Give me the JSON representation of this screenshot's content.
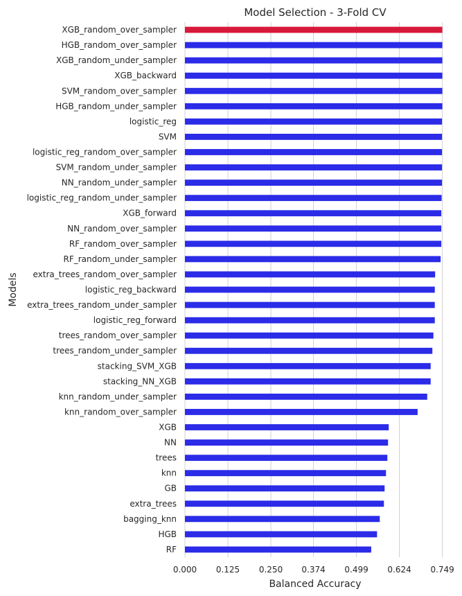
{
  "chart_data": {
    "type": "bar",
    "orientation": "horizontal",
    "title": "Model Selection - 3-Fold CV",
    "xlabel": "Balanced Accuracy",
    "ylabel": "Models",
    "xlim": [
      0,
      0.78
    ],
    "xticks": [
      "0.000",
      "0.125",
      "0.250",
      "0.374",
      "0.499",
      "0.624",
      "0.749"
    ],
    "grid": "vertical",
    "colors": {
      "default": "#2b2be8",
      "highlight": "#d7193a"
    },
    "highlight_index": 0,
    "categories": [
      "XGB_random_over_sampler",
      "HGB_random_over_sampler",
      "XGB_random_under_sampler",
      "XGB_backward",
      "SVM_random_over_sampler",
      "HGB_random_under_sampler",
      "logistic_reg",
      "SVM",
      "logistic_reg_random_over_sampler",
      "SVM_random_under_sampler",
      "NN_random_under_sampler",
      "logistic_reg_random_under_sampler",
      "XGB_forward",
      "NN_random_over_sampler",
      "RF_random_over_sampler",
      "RF_random_under_sampler",
      "extra_trees_random_over_sampler",
      "logistic_reg_backward",
      "extra_trees_random_under_sampler",
      "logistic_reg_forward",
      "trees_random_over_sampler",
      "trees_random_under_sampler",
      "stacking_SVM_XGB",
      "stacking_NN_XGB",
      "knn_random_under_sampler",
      "knn_random_over_sampler",
      "XGB",
      "NN",
      "trees",
      "knn",
      "GB",
      "extra_trees",
      "bagging_knn",
      "HGB",
      "RF"
    ],
    "values": [
      0.749,
      0.749,
      0.749,
      0.749,
      0.749,
      0.749,
      0.748,
      0.748,
      0.748,
      0.748,
      0.748,
      0.747,
      0.746,
      0.746,
      0.746,
      0.744,
      0.728,
      0.727,
      0.727,
      0.727,
      0.723,
      0.72,
      0.715,
      0.715,
      0.705,
      0.677,
      0.593,
      0.591,
      0.589,
      0.585,
      0.581,
      0.579,
      0.567,
      0.559,
      0.542
    ]
  }
}
